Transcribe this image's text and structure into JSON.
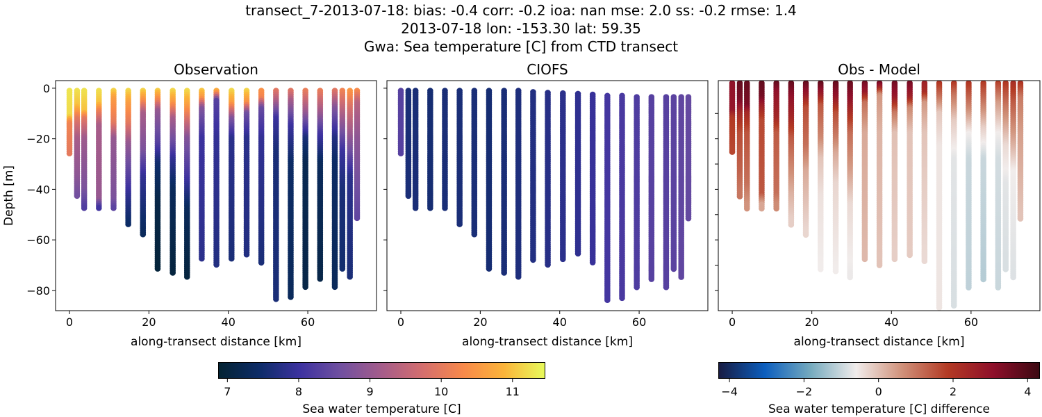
{
  "title_lines": [
    "transect_7-2013-07-18: bias: -0.4  corr: -0.2  ioa: nan  mse: 2.0  ss: -0.2  rmse: 1.4",
    "2013-07-18 lon: -153.30 lat: 59.35",
    "Gwa: Sea temperature [C] from CTD transect"
  ],
  "chart_data": [
    {
      "type": "scatter",
      "title": "Observation",
      "xlabel": "along-transect distance [km]",
      "ylabel": "Depth [m]",
      "xlim": [
        -3.5,
        77.3
      ],
      "ylim": [
        3,
        -88
      ],
      "xticks": [
        0,
        20,
        40,
        60
      ],
      "yticks": [
        0,
        -20,
        -40,
        -60,
        -80
      ],
      "color_by": "temperature"
    },
    {
      "type": "scatter",
      "title": "CIOFS",
      "xlabel": "along-transect distance [km]",
      "xlim": [
        -3.5,
        77.3
      ],
      "ylim": [
        3,
        -88
      ],
      "xticks": [
        0,
        20,
        40,
        60
      ],
      "yticks": [
        0,
        -20,
        -40,
        -60,
        -80
      ],
      "color_by": "temperature"
    },
    {
      "type": "scatter",
      "title": "Obs - Model",
      "xlabel": "along-transect distance [km]",
      "xlim": [
        -3.5,
        77.3
      ],
      "ylim": [
        3,
        -88
      ],
      "xticks": [
        0,
        20,
        40,
        60
      ],
      "yticks": [
        -10,
        -20,
        -30,
        -40,
        -50,
        -60,
        -70,
        -80
      ],
      "color_by": "difference"
    }
  ],
  "stations": {
    "distance_km": [
      0,
      1.9,
      3.7,
      7.4,
      11.1,
      14.8,
      18.5,
      22.2,
      26.0,
      29.6,
      33.3,
      37.0,
      40.8,
      44.6,
      48.3,
      52.0,
      55.7,
      59.4,
      63.1,
      66.8,
      68.7,
      70.6,
      72.4
    ],
    "bottom_depth_m": [
      -26,
      -43,
      -48,
      -48,
      -48,
      -54,
      -58,
      -72,
      -73,
      -75,
      -68,
      -70,
      -68,
      -66,
      -69,
      -84,
      -83,
      -79,
      -76,
      -79,
      -72,
      -75,
      -52
    ],
    "obs_profiles": [
      [
        [
          0,
          11.3
        ],
        [
          -11,
          11.2
        ],
        [
          -14,
          10.2
        ],
        [
          -26,
          10.0
        ]
      ],
      [
        [
          0,
          11.3
        ],
        [
          -7,
          11
        ],
        [
          -12,
          10
        ],
        [
          -20,
          9.2
        ],
        [
          -35,
          8.9
        ],
        [
          -43,
          8.6
        ]
      ],
      [
        [
          0,
          11.3
        ],
        [
          -9,
          11
        ],
        [
          -12,
          10
        ],
        [
          -20,
          9.1
        ],
        [
          -40,
          8.7
        ],
        [
          -48,
          8.2
        ]
      ],
      [
        [
          0,
          11.3
        ],
        [
          -6,
          11
        ],
        [
          -9,
          10.2
        ],
        [
          -15,
          9.2
        ],
        [
          -44,
          9
        ],
        [
          -48,
          7.9
        ]
      ],
      [
        [
          0,
          11.3
        ],
        [
          -4,
          10.6
        ],
        [
          -14,
          10
        ],
        [
          -20,
          9.0
        ],
        [
          -44,
          8.7
        ],
        [
          -48,
          8.3
        ]
      ],
      [
        [
          0,
          11.3
        ],
        [
          -6,
          10.6
        ],
        [
          -14,
          10
        ],
        [
          -22,
          9
        ],
        [
          -35,
          8.3
        ],
        [
          -44,
          7.8
        ],
        [
          -54,
          7.4
        ]
      ],
      [
        [
          0,
          11.3
        ],
        [
          -5,
          10.4
        ],
        [
          -10,
          9.2
        ],
        [
          -25,
          8.7
        ],
        [
          -35,
          7.9
        ],
        [
          -58,
          7.3
        ]
      ],
      [
        [
          0,
          11.3
        ],
        [
          -5,
          10.2
        ],
        [
          -9,
          9.0
        ],
        [
          -22,
          8.3
        ],
        [
          -30,
          7.5
        ],
        [
          -45,
          7.1
        ],
        [
          -72,
          6.95
        ]
      ],
      [
        [
          0,
          11.3
        ],
        [
          -6,
          10.5
        ],
        [
          -12,
          9.2
        ],
        [
          -22,
          8.5
        ],
        [
          -28,
          7.9
        ],
        [
          -40,
          7.3
        ],
        [
          -73,
          7.0
        ]
      ],
      [
        [
          0,
          11.3
        ],
        [
          -7,
          10.6
        ],
        [
          -14,
          9.6
        ],
        [
          -20,
          8.8
        ],
        [
          -35,
          8.1
        ],
        [
          -48,
          7.3
        ],
        [
          -75,
          7.0
        ]
      ],
      [
        [
          0,
          11.2
        ],
        [
          -4,
          10.5
        ],
        [
          -8,
          8.8
        ],
        [
          -20,
          8.0
        ],
        [
          -68,
          7.8
        ]
      ],
      [
        [
          0,
          11.2
        ],
        [
          -2,
          10.3
        ],
        [
          -5,
          8.3
        ],
        [
          -20,
          7.9
        ],
        [
          -70,
          7.7
        ]
      ],
      [
        [
          0,
          11.3
        ],
        [
          -6,
          10.6
        ],
        [
          -12,
          8.8
        ],
        [
          -20,
          7.8
        ],
        [
          -68,
          7.6
        ]
      ],
      [
        [
          0,
          11.3
        ],
        [
          -6,
          10.4
        ],
        [
          -10,
          8.6
        ],
        [
          -20,
          7.8
        ],
        [
          -66,
          7.7
        ]
      ],
      [
        [
          0,
          10.5
        ],
        [
          -4,
          10.2
        ],
        [
          -8,
          8.5
        ],
        [
          -20,
          7.9
        ],
        [
          -69,
          7.6
        ]
      ],
      [
        [
          0,
          10.1
        ],
        [
          -5,
          9.3
        ],
        [
          -12,
          8
        ],
        [
          -25,
          7.6
        ],
        [
          -84,
          7.6
        ]
      ],
      [
        [
          0,
          10.1
        ],
        [
          -5,
          9.2
        ],
        [
          -15,
          8
        ],
        [
          -30,
          7.4
        ],
        [
          -83,
          7.3
        ]
      ],
      [
        [
          0,
          10.2
        ],
        [
          -10,
          9.0
        ],
        [
          -20,
          7.6
        ],
        [
          -30,
          7.2
        ],
        [
          -79,
          7.1
        ]
      ],
      [
        [
          0,
          10.2
        ],
        [
          -8,
          9.3
        ],
        [
          -18,
          8.1
        ],
        [
          -30,
          7.3
        ],
        [
          -76,
          7.1
        ]
      ],
      [
        [
          0,
          10.1
        ],
        [
          -8,
          8.8
        ],
        [
          -20,
          7.7
        ],
        [
          -30,
          7.4
        ],
        [
          -79,
          7.3
        ]
      ],
      [
        [
          0,
          10.3
        ],
        [
          -10,
          9.3
        ],
        [
          -25,
          8
        ],
        [
          -40,
          7.6
        ],
        [
          -72,
          7.5
        ]
      ],
      [
        [
          0,
          10.6
        ],
        [
          -8,
          9.8
        ],
        [
          -25,
          8.6
        ],
        [
          -35,
          7.8
        ],
        [
          -75,
          7.6
        ]
      ],
      [
        [
          0,
          10.5
        ],
        [
          -6,
          9.4
        ],
        [
          -20,
          8.9
        ],
        [
          -52,
          8.4
        ]
      ]
    ],
    "model_top_depth_m": [
      -1,
      -1,
      -1,
      -1,
      -1,
      -1,
      -1,
      -1,
      -1,
      -1,
      -1.5,
      -1.8,
      -2,
      -2.2,
      -2.5,
      -3,
      -3,
      -3.5,
      -3.5,
      -3.5,
      -3.5,
      -3.5,
      -3.5
    ],
    "model_temperature": [
      8.3,
      7.6,
      7.6,
      7.55,
      7.6,
      7.6,
      7.6,
      7.55,
      7.6,
      7.65,
      7.7,
      7.75,
      7.8,
      7.85,
      7.95,
      8.1,
      8.15,
      8.2,
      8.3,
      8.3,
      8.35,
      8.4,
      8.45
    ]
  },
  "colorbars": {
    "temperature": {
      "label": "Sea water temperature [C]",
      "range": [
        6.87,
        11.46
      ],
      "ticks": [
        "7",
        "8",
        "9",
        "10",
        "11"
      ],
      "tick_values": [
        7,
        8,
        9,
        10,
        11
      ],
      "colormap": [
        "#042333",
        "#0d2c68",
        "#3d32a0",
        "#7150a0",
        "#a55c8a",
        "#d46e6e",
        "#f8894a",
        "#fbb43a",
        "#e8fa5b"
      ]
    },
    "difference": {
      "label": "Sea water temperature [C] difference",
      "range": [
        -4.3,
        4.33
      ],
      "ticks": [
        "−4",
        "−2",
        "0",
        "2",
        "4"
      ],
      "tick_values": [
        -4,
        -2,
        0,
        2,
        4
      ],
      "colormap": [
        "#181c43",
        "#0c5ebe",
        "#75aabe",
        "#f1eceb",
        "#d0917a",
        "#b33a24",
        "#8e0f2a",
        "#3c0912"
      ]
    }
  },
  "tick_labels": {
    "x": [
      "0",
      "20",
      "40",
      "60"
    ],
    "y": [
      "0",
      "−20",
      "−40",
      "−60",
      "−80"
    ]
  }
}
